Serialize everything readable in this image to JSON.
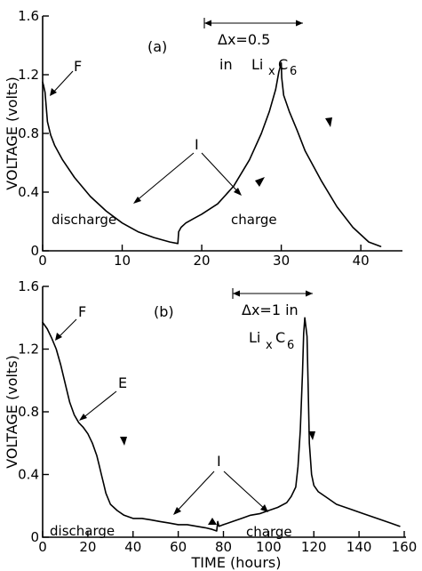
{
  "figure": {
    "xlabel": "TIME (hours)"
  },
  "chart_data": [
    {
      "type": "line",
      "panel_label": "(a)",
      "ylabel": "VOLTAGE (volts)",
      "xlim": [
        0,
        43
      ],
      "ylim": [
        0,
        1.6
      ],
      "x_ticks": [
        "0",
        "10",
        "20",
        "30",
        "40"
      ],
      "x_tick_values": [
        0,
        10,
        20,
        30,
        40
      ],
      "y_ticks": [
        "0",
        "0.4",
        "0.8",
        "1.2",
        "1.6"
      ],
      "y_tick_values": [
        0,
        0.4,
        0.8,
        1.2,
        1.6
      ],
      "series": [
        {
          "x": [
            0,
            0.1,
            0.3,
            0.6,
            1.0,
            1.5,
            2.5,
            4,
            6,
            8,
            10,
            12,
            14,
            16,
            17.0,
            17.1,
            17.4,
            18,
            19,
            20,
            22,
            24,
            26,
            27.5,
            28.5,
            29.3,
            29.7,
            30.0,
            30.05,
            30.3,
            31,
            32,
            33,
            35,
            37,
            39,
            41,
            42.5
          ],
          "y": [
            1.15,
            1.13,
            1.08,
            0.88,
            0.79,
            0.72,
            0.62,
            0.5,
            0.37,
            0.27,
            0.19,
            0.13,
            0.09,
            0.06,
            0.05,
            0.13,
            0.16,
            0.19,
            0.22,
            0.25,
            0.32,
            0.44,
            0.62,
            0.8,
            0.95,
            1.1,
            1.22,
            1.28,
            1.18,
            1.06,
            0.95,
            0.82,
            0.68,
            0.48,
            0.3,
            0.16,
            0.06,
            0.03
          ]
        }
      ],
      "annotations": {
        "f_label": "F",
        "i_label": "I",
        "discharge_label": "discharge",
        "charge_label": "charge",
        "delta_label": "Δx=0.5",
        "delta_in_label": "in",
        "delta_formula_li": "Li",
        "delta_formula_x": "x",
        "delta_formula_c": "C",
        "delta_formula_6": "6"
      }
    },
    {
      "type": "line",
      "panel_label": "(b)",
      "ylabel": "VOLTAGE (volts)",
      "xlim": [
        0,
        160
      ],
      "ylim": [
        0,
        1.6
      ],
      "x_ticks": [
        "0",
        "20",
        "40",
        "60",
        "80",
        "100",
        "120",
        "140",
        "160"
      ],
      "x_tick_values": [
        0,
        20,
        40,
        60,
        80,
        100,
        120,
        140,
        160
      ],
      "y_ticks": [
        "0",
        "0.4",
        "0.8",
        "1.2",
        "1.6"
      ],
      "y_tick_values": [
        0,
        0.4,
        0.8,
        1.2,
        1.6
      ],
      "series": [
        {
          "x": [
            0,
            2,
            4,
            6,
            8,
            10,
            12,
            14,
            16,
            18,
            20,
            22,
            24,
            25,
            26,
            27,
            28,
            30,
            33,
            36,
            40,
            44,
            48,
            52,
            56,
            60,
            64,
            68,
            72,
            75,
            77,
            77.5,
            78,
            80,
            84,
            88,
            92,
            96,
            100,
            104,
            108,
            110,
            112,
            113,
            114,
            115,
            115.5,
            116,
            117,
            117.5,
            118,
            119,
            120,
            122,
            126,
            130,
            136,
            142,
            148,
            154,
            158
          ],
          "y": [
            1.37,
            1.33,
            1.27,
            1.2,
            1.1,
            0.98,
            0.86,
            0.78,
            0.73,
            0.7,
            0.66,
            0.6,
            0.52,
            0.46,
            0.4,
            0.34,
            0.28,
            0.21,
            0.17,
            0.14,
            0.12,
            0.12,
            0.11,
            0.1,
            0.09,
            0.08,
            0.08,
            0.07,
            0.06,
            0.05,
            0.04,
            0.1,
            0.07,
            0.08,
            0.1,
            0.12,
            0.14,
            0.15,
            0.17,
            0.19,
            0.22,
            0.26,
            0.32,
            0.45,
            0.68,
            1.05,
            1.3,
            1.4,
            1.28,
            0.95,
            0.6,
            0.4,
            0.33,
            0.29,
            0.25,
            0.21,
            0.18,
            0.15,
            0.12,
            0.09,
            0.07
          ]
        }
      ],
      "annotations": {
        "f_label": "F",
        "e_label": "E",
        "i_label": "I",
        "discharge_label": "discharge",
        "charge_label": "charge",
        "delta_label": "Δx=1 in",
        "delta_formula_li": "Li",
        "delta_formula_x": "x",
        "delta_formula_c": "C",
        "delta_formula_6": "6"
      }
    }
  ]
}
